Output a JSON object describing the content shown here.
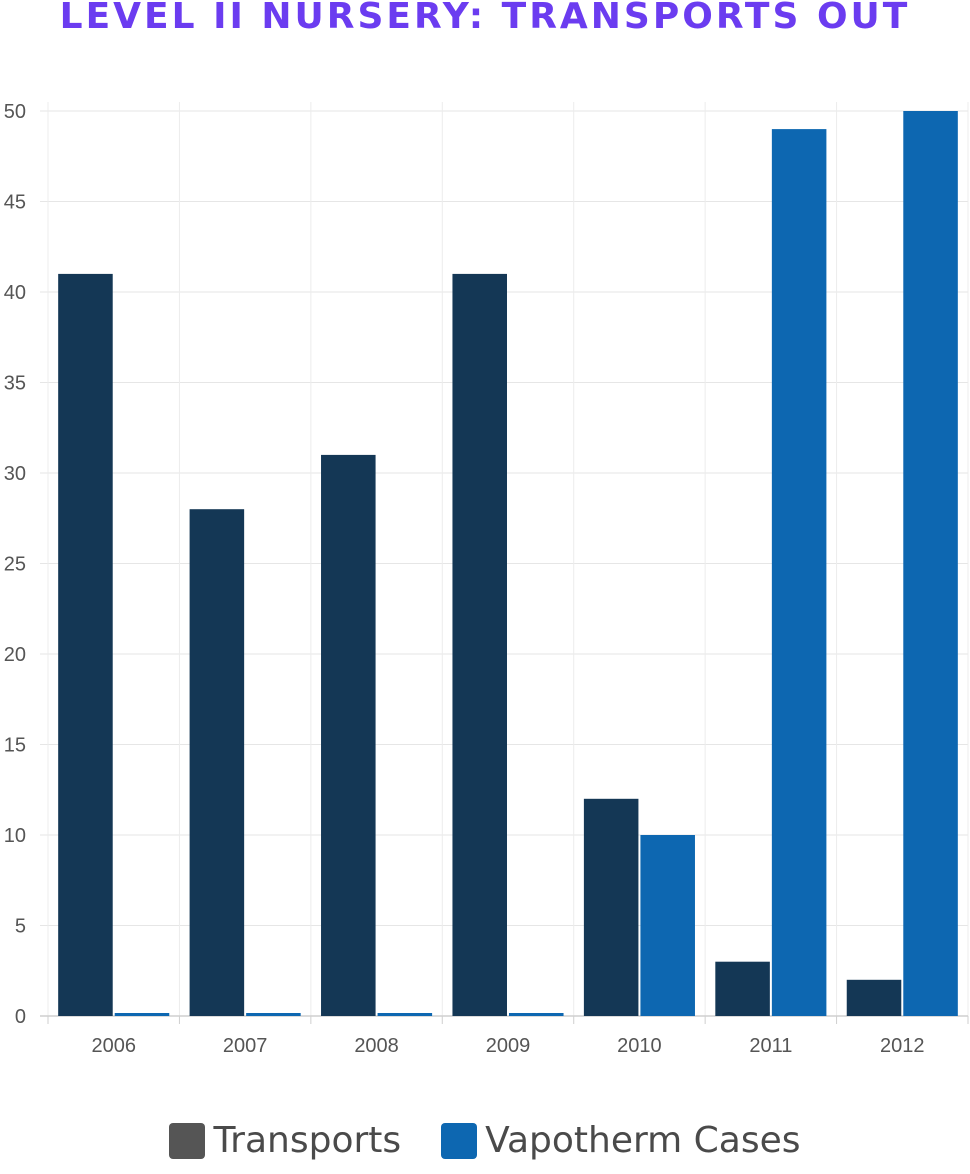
{
  "title": "LEVEL II NURSERY: TRANSPORTS OUT",
  "chart_data": {
    "type": "bar",
    "categories": [
      "2006",
      "2007",
      "2008",
      "2009",
      "2010",
      "2011",
      "2012"
    ],
    "series": [
      {
        "name": "Transports",
        "values": [
          41,
          28,
          31,
          41,
          12,
          3,
          2
        ],
        "color": "#143755"
      },
      {
        "name": "Vapotherm Cases",
        "values": [
          0,
          0,
          0,
          0,
          10,
          49,
          50
        ],
        "color": "#0d67b1"
      }
    ],
    "ylim": [
      0,
      50
    ],
    "yticks": [
      "0",
      "5",
      "10",
      "15",
      "20",
      "25",
      "30",
      "35",
      "40",
      "45",
      "50"
    ],
    "grid": true,
    "legend": {
      "position": "bottom",
      "items": [
        {
          "label": "Transports",
          "color": "#555555"
        },
        {
          "label": "Vapotherm Cases",
          "color": "#0d67b1"
        }
      ]
    }
  }
}
